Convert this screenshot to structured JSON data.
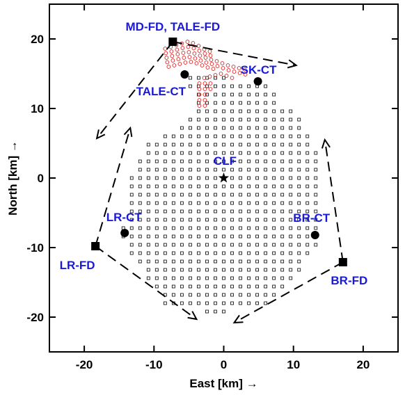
{
  "chart_data": {
    "type": "scatter",
    "title": "",
    "xlabel": "East [km] →",
    "ylabel": "North [km] →",
    "xlim": [
      -25,
      25
    ],
    "ylim": [
      -25,
      25
    ],
    "xticks": [
      -20,
      -10,
      0,
      10,
      20
    ],
    "yticks": [
      -20,
      -10,
      0,
      10,
      20
    ],
    "xtick_labels": [
      "-20",
      "-10",
      "0",
      "10",
      "20"
    ],
    "ytick_labels": [
      "-20",
      "-10",
      "0",
      "10",
      "20"
    ],
    "grid": false,
    "colors": {
      "label": "#1a1ad6",
      "tale_sd": "#e02020",
      "ta_sd": "#000000"
    },
    "fluorescence_detectors": [
      {
        "name": "MD-FD, TALE-FD",
        "x": -7.3,
        "y": 19.6
      },
      {
        "name": "LR-FD",
        "x": -18.4,
        "y": -9.8
      },
      {
        "name": "BR-FD",
        "x": 17.1,
        "y": -12.1
      }
    ],
    "central_towers": [
      {
        "name": "SK-CT",
        "x": 4.9,
        "y": 13.9
      },
      {
        "name": "TALE-CT",
        "x": -5.6,
        "y": 14.9
      },
      {
        "name": "LR-CT",
        "x": -14.2,
        "y": -7.9
      },
      {
        "name": "BR-CT",
        "x": 13.1,
        "y": -8.2
      }
    ],
    "central_laser_facility": {
      "name": "CLF",
      "x": 0.0,
      "y": 0.0
    },
    "view_arrows": [
      {
        "from": [
          -7.3,
          19.6
        ],
        "to": [
          10.4,
          16.2
        ]
      },
      {
        "from": [
          -7.3,
          19.6
        ],
        "to": [
          -18.2,
          5.7
        ]
      },
      {
        "from": [
          -18.4,
          -9.8
        ],
        "to": [
          -13.4,
          7.2
        ]
      },
      {
        "from": [
          -18.4,
          -9.8
        ],
        "to": [
          -3.9,
          -20.3
        ]
      },
      {
        "from": [
          17.1,
          -12.1
        ],
        "to": [
          14.5,
          5.5
        ]
      },
      {
        "from": [
          17.1,
          -12.1
        ],
        "to": [
          1.5,
          -20.8
        ]
      }
    ],
    "ta_sd_array": {
      "marker": "open square",
      "spacing_km": 1.2,
      "grid_origin": [
        0.0,
        0.0
      ],
      "boundary": [
        [
          -5.3,
          15.4
        ],
        [
          -3.5,
          15.4
        ],
        [
          -1.5,
          15.0
        ],
        [
          0.5,
          14.4
        ],
        [
          2.5,
          14.0
        ],
        [
          6.0,
          14.0
        ],
        [
          7.5,
          12.5
        ],
        [
          8.0,
          10.5
        ],
        [
          9.4,
          10.2
        ],
        [
          11.0,
          8.2
        ],
        [
          12.8,
          5.8
        ],
        [
          13.5,
          2.0
        ],
        [
          13.5,
          -6.0
        ],
        [
          13.5,
          -9.5
        ],
        [
          12.2,
          -11.5
        ],
        [
          11.0,
          -13.4
        ],
        [
          9.7,
          -15.4
        ],
        [
          8.5,
          -16.5
        ],
        [
          7.3,
          -17.5
        ],
        [
          4.8,
          -18.5
        ],
        [
          1.2,
          -19.2
        ],
        [
          -2.4,
          -19.2
        ],
        [
          -6.0,
          -18.8
        ],
        [
          -8.5,
          -18.2
        ],
        [
          -9.7,
          -16.5
        ],
        [
          -10.9,
          -14.5
        ],
        [
          -12.1,
          -12.3
        ],
        [
          -13.5,
          -10.4
        ],
        [
          -14.7,
          -7.8
        ],
        [
          -13.5,
          -3.0
        ],
        [
          -13.2,
          0.0
        ],
        [
          -12.1,
          2.5
        ],
        [
          -10.9,
          4.8
        ],
        [
          -8.5,
          6.5
        ],
        [
          -6.0,
          7.6
        ],
        [
          -4.0,
          10.5
        ],
        [
          -3.6,
          12.0
        ],
        [
          -5.3,
          12.5
        ]
      ]
    },
    "tale_sd_array": {
      "marker": "open circle",
      "points": [
        [
          -8.4,
          18.6
        ],
        [
          -7.6,
          18.85
        ],
        [
          -6.8,
          19.1
        ],
        [
          -6.0,
          19.35
        ],
        [
          -5.2,
          19.6
        ],
        [
          -4.4,
          19.4
        ],
        [
          -3.6,
          19.0
        ],
        [
          -2.8,
          18.5
        ],
        [
          -2.0,
          18.2
        ],
        [
          -8.3,
          17.95
        ],
        [
          -7.5,
          18.2
        ],
        [
          -6.7,
          18.45
        ],
        [
          -5.9,
          18.7
        ],
        [
          -5.1,
          18.85
        ],
        [
          -4.3,
          18.65
        ],
        [
          -3.5,
          18.3
        ],
        [
          -2.7,
          17.9
        ],
        [
          -1.9,
          17.6
        ],
        [
          -8.2,
          17.3
        ],
        [
          -7.4,
          17.55
        ],
        [
          -6.6,
          17.8
        ],
        [
          -5.8,
          18.0
        ],
        [
          -5.0,
          18.1
        ],
        [
          -4.2,
          17.9
        ],
        [
          -3.4,
          17.6
        ],
        [
          -2.6,
          17.3
        ],
        [
          -1.8,
          17.0
        ],
        [
          -8.1,
          16.65
        ],
        [
          -7.3,
          16.9
        ],
        [
          -6.5,
          17.1
        ],
        [
          -5.7,
          17.3
        ],
        [
          -4.9,
          17.4
        ],
        [
          -4.1,
          17.2
        ],
        [
          -3.3,
          16.9
        ],
        [
          -2.5,
          16.6
        ],
        [
          -1.7,
          16.4
        ],
        [
          -7.9,
          16.0
        ],
        [
          -7.1,
          16.2
        ],
        [
          -6.3,
          16.4
        ],
        [
          -5.5,
          16.6
        ],
        [
          -4.7,
          16.7
        ],
        [
          -3.9,
          16.5
        ],
        [
          -3.1,
          16.2
        ],
        [
          -2.3,
          15.9
        ],
        [
          -1.5,
          15.7
        ],
        [
          -1.0,
          16.8
        ],
        [
          -0.2,
          16.5
        ],
        [
          0.6,
          16.2
        ],
        [
          1.4,
          16.0
        ],
        [
          2.2,
          15.8
        ],
        [
          3.0,
          15.6
        ],
        [
          -0.9,
          16.1
        ],
        [
          -0.1,
          15.8
        ],
        [
          0.7,
          15.5
        ],
        [
          1.5,
          15.3
        ],
        [
          2.3,
          15.1
        ],
        [
          3.1,
          14.9
        ],
        [
          -2.8,
          14.4
        ],
        [
          -2.0,
          14.6
        ],
        [
          -1.2,
          14.8
        ],
        [
          -0.4,
          15.0
        ],
        [
          0.4,
          14.7
        ],
        [
          1.2,
          14.4
        ],
        [
          -3.5,
          13.6
        ],
        [
          -2.7,
          13.6
        ],
        [
          -1.9,
          13.6
        ],
        [
          -3.5,
          12.8
        ],
        [
          -2.7,
          12.8
        ],
        [
          -1.9,
          12.8
        ],
        [
          -3.5,
          12.0
        ],
        [
          -2.7,
          12.0
        ],
        [
          -3.5,
          11.2
        ],
        [
          -2.7,
          11.2
        ],
        [
          -3.5,
          10.4
        ],
        [
          -2.7,
          10.4
        ]
      ]
    },
    "site_labels": [
      {
        "text": "MD-FD, TALE-FD",
        "x": -7.3,
        "y": 21.2,
        "anchor": "middle"
      },
      {
        "text": "SK-CT",
        "x": 5.0,
        "y": 15.0,
        "anchor": "middle"
      },
      {
        "text": "TALE-CT",
        "x": -9.0,
        "y": 11.9,
        "anchor": "middle"
      },
      {
        "text": "CLF",
        "x": 0.2,
        "y": 1.9,
        "anchor": "middle"
      },
      {
        "text": "LR-CT",
        "x": -14.3,
        "y": -6.2,
        "anchor": "middle"
      },
      {
        "text": "BR-CT",
        "x": 12.6,
        "y": -6.3,
        "anchor": "middle"
      },
      {
        "text": "LR-FD",
        "x": -21.0,
        "y": -13.1,
        "anchor": "middle"
      },
      {
        "text": "BR-FD",
        "x": 18.0,
        "y": -15.3,
        "anchor": "middle"
      }
    ]
  }
}
